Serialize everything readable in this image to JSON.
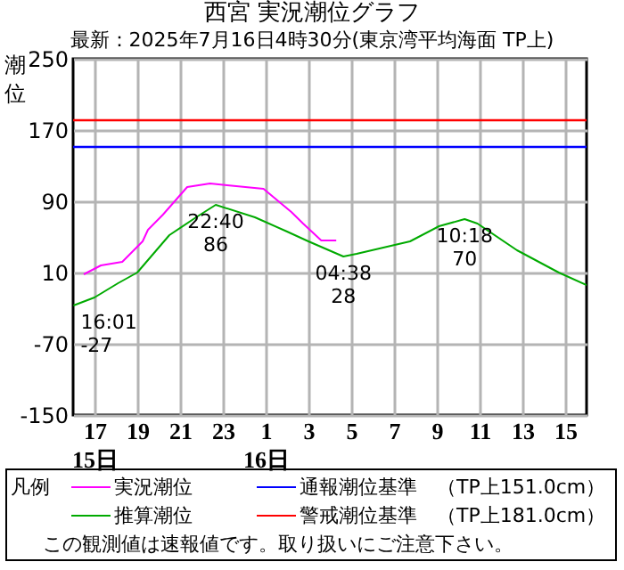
{
  "chart_data": {
    "type": "line",
    "title": "西宮 実況潮位グラフ",
    "subtitle": "最新：2025年7月16日4時30分(東京湾平均海面 TP上)",
    "ylabel": "潮位",
    "legend_title": "凡例",
    "legend": "bottom",
    "grid": true,
    "marker": "none",
    "line_style": "solid",
    "xlim": [
      "2025-07-15T16:00",
      "2025-07-16T16:00"
    ],
    "ylim": [
      -150,
      250
    ],
    "xticks": [
      {
        "value": "2025-07-15T17:00",
        "label": "17\n15日"
      },
      {
        "value": "2025-07-15T19:00",
        "label": "19"
      },
      {
        "value": "2025-07-15T21:00",
        "label": "21"
      },
      {
        "value": "2025-07-15T23:00",
        "label": "23"
      },
      {
        "value": "2025-07-16T01:00",
        "label": "1\n16日"
      },
      {
        "value": "2025-07-16T03:00",
        "label": "3"
      },
      {
        "value": "2025-07-16T05:00",
        "label": "5"
      },
      {
        "value": "2025-07-16T07:00",
        "label": "7"
      },
      {
        "value": "2025-07-16T09:00",
        "label": "9"
      },
      {
        "value": "2025-07-16T11:00",
        "label": "11"
      },
      {
        "value": "2025-07-16T13:00",
        "label": "13"
      },
      {
        "value": "2025-07-16T15:00",
        "label": "15"
      }
    ],
    "yticks": [
      -150,
      -70,
      10,
      90,
      170,
      250
    ],
    "series": [
      {
        "name": "実況潮位",
        "color": "#ff00ff",
        "x": [
          "2025-07-15T16:30",
          "2025-07-15T17:18",
          "2025-07-15T18:18",
          "2025-07-15T19:15",
          "2025-07-15T19:30",
          "2025-07-15T20:12",
          "2025-07-15T21:20",
          "2025-07-15T22:24",
          "2025-07-15T23:12",
          "2025-07-16T00:54",
          "2025-07-16T02:12",
          "2025-07-16T02:45",
          "2025-07-16T03:36",
          "2025-07-16T04:18"
        ],
        "values": [
          8,
          18,
          22,
          45,
          58,
          75,
          106,
          110,
          108,
          104,
          78,
          65,
          46,
          46
        ]
      },
      {
        "name": "推算潮位",
        "color": "#00aa00",
        "x": [
          "2025-07-15T16:01",
          "2025-07-15T17:00",
          "2025-07-15T18:06",
          "2025-07-15T19:00",
          "2025-07-15T20:30",
          "2025-07-15T21:45",
          "2025-07-15T22:40",
          "2025-07-16T00:30",
          "2025-07-16T02:00",
          "2025-07-16T03:00",
          "2025-07-16T04:38",
          "2025-07-16T05:15",
          "2025-07-16T07:45",
          "2025-07-16T09:06",
          "2025-07-16T10:18",
          "2025-07-16T10:54",
          "2025-07-16T12:45",
          "2025-07-16T14:42",
          "2025-07-16T16:00"
        ],
        "values": [
          -27,
          -18,
          -2,
          10,
          52,
          72,
          86,
          72,
          56,
          45,
          28,
          31,
          45,
          62,
          70,
          65,
          35,
          10,
          -4
        ]
      }
    ],
    "ref_lines": [
      {
        "axis": "y",
        "value": 151,
        "label": "通報潮位基準　（TP上151.0cm）",
        "color": "#0000ff"
      },
      {
        "axis": "y",
        "value": 181,
        "label": "警戒潮位基準　（TP上181.0cm）",
        "color": "#ff0000"
      }
    ],
    "annotations": [
      {
        "text": "16:01\n-27",
        "x": "2025-07-15T16:01",
        "y": -27
      },
      {
        "text": "22:40\n86",
        "x": "2025-07-15T22:40",
        "y": 86
      },
      {
        "text": "04:38\n28",
        "x": "2025-07-16T04:38",
        "y": 28
      },
      {
        "text": "10:18\n70",
        "x": "2025-07-16T10:18",
        "y": 70
      },
      "この観測値は速報値です。取り扱いにご注意下さい。"
    ]
  }
}
